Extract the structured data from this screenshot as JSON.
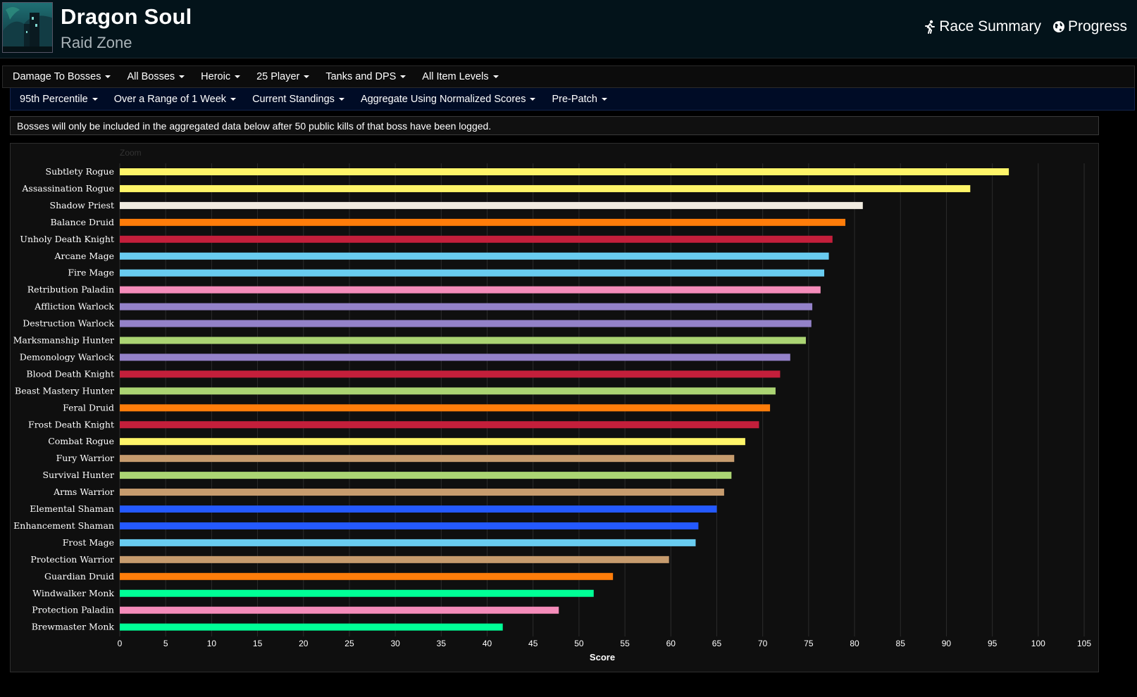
{
  "header": {
    "title": "Dragon Soul",
    "subtitle": "Raid Zone",
    "links": [
      {
        "label": "Race Summary",
        "icon": "runner-icon"
      },
      {
        "label": "Progress",
        "icon": "globe-icon"
      }
    ]
  },
  "filters": {
    "row1": [
      "Damage To Bosses",
      "All Bosses",
      "Heroic",
      "25 Player",
      "Tanks and DPS",
      "All Item Levels"
    ],
    "row2": [
      "95th Percentile",
      "Over a Range of 1 Week",
      "Current Standings",
      "Aggregate Using Normalized Scores",
      "Pre-Patch"
    ]
  },
  "notice": "Bosses will only be included in the aggregated data below after 50 public kills of that boss have been logged.",
  "zoom_label": "Zoom",
  "chart_data": {
    "type": "bar",
    "orientation": "horizontal",
    "xlabel": "Score",
    "xlim": [
      0,
      105
    ],
    "xticks": [
      0,
      5,
      10,
      15,
      20,
      25,
      30,
      35,
      40,
      45,
      50,
      55,
      60,
      65,
      70,
      75,
      80,
      85,
      90,
      95,
      100,
      105
    ],
    "grid": true,
    "categories": [
      "Subtlety Rogue",
      "Assassination Rogue",
      "Shadow Priest",
      "Balance Druid",
      "Unholy Death Knight",
      "Arcane Mage",
      "Fire Mage",
      "Retribution Paladin",
      "Affliction Warlock",
      "Destruction Warlock",
      "Marksmanship Hunter",
      "Demonology Warlock",
      "Blood Death Knight",
      "Beast Mastery Hunter",
      "Feral Druid",
      "Frost Death Knight",
      "Combat Rogue",
      "Fury Warrior",
      "Survival Hunter",
      "Arms Warrior",
      "Elemental Shaman",
      "Enhancement Shaman",
      "Frost Mage",
      "Protection Warrior",
      "Guardian Druid",
      "Windwalker Monk",
      "Protection Paladin",
      "Brewmaster Monk"
    ],
    "values": [
      96.8,
      92.6,
      80.9,
      79.0,
      77.6,
      77.2,
      76.7,
      76.3,
      75.4,
      75.3,
      74.7,
      73.0,
      71.9,
      71.4,
      70.8,
      69.6,
      68.1,
      66.9,
      66.6,
      65.8,
      65.0,
      63.0,
      62.7,
      59.8,
      53.7,
      51.6,
      47.8,
      41.7
    ],
    "colors": [
      "#FFF569",
      "#FFF569",
      "#F0EBE0",
      "#FF7D0A",
      "#C41F3B",
      "#69CCF0",
      "#69CCF0",
      "#F58CBA",
      "#9482C9",
      "#9482C9",
      "#ABD473",
      "#9482C9",
      "#C41F3B",
      "#ABD473",
      "#FF7D0A",
      "#C41F3B",
      "#FFF569",
      "#C79C6E",
      "#ABD473",
      "#C79C6E",
      "#2459FF",
      "#2459FF",
      "#69CCF0",
      "#C79C6E",
      "#FF7D0A",
      "#00FF96",
      "#F58CBA",
      "#00FF96"
    ]
  }
}
